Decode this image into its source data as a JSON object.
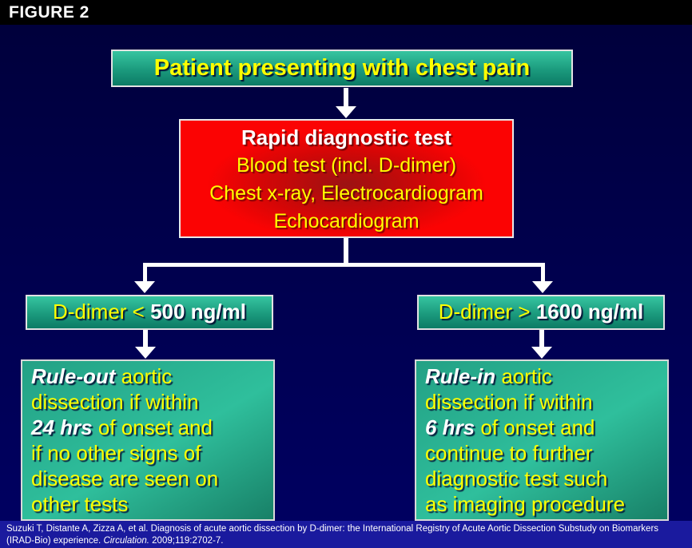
{
  "header": {
    "figure_label": "FIGURE 2"
  },
  "flow": {
    "title_box": "Patient presenting with chest pain",
    "rapid_box": {
      "heading": "Rapid diagnostic test",
      "line1": "Blood test (incl. D-dimer)",
      "line2": "Chest x-ray, Electrocardiogram",
      "line3": "Echocardiogram"
    },
    "left": {
      "condition_prefix": "D-dimer < ",
      "condition_value": "500 ng/ml",
      "outcome_lines": [
        [
          {
            "text": "Rule-out",
            "em": true
          },
          {
            "text": " aortic",
            "em": false
          }
        ],
        [
          {
            "text": "dissection if within",
            "em": false
          }
        ],
        [
          {
            "text": "24 hrs",
            "em": true
          },
          {
            "text": " of onset and",
            "em": false
          }
        ],
        [
          {
            "text": "if no other signs of",
            "em": false
          }
        ],
        [
          {
            "text": "disease are seen on",
            "em": false
          }
        ],
        [
          {
            "text": "other tests",
            "em": false
          }
        ]
      ]
    },
    "right": {
      "condition_prefix": "D-dimer > ",
      "condition_value": "1600 ng/ml",
      "outcome_lines": [
        [
          {
            "text": "Rule-in",
            "em": true
          },
          {
            "text": " aortic",
            "em": false
          }
        ],
        [
          {
            "text": "dissection if within",
            "em": false
          }
        ],
        [
          {
            "text": "6 hrs",
            "em": true
          },
          {
            "text": " of onset and",
            "em": false
          }
        ],
        [
          {
            "text": "continue to further",
            "em": false
          }
        ],
        [
          {
            "text": "diagnostic test such",
            "em": false
          }
        ],
        [
          {
            "text": "as imaging procedure",
            "em": false
          }
        ]
      ]
    }
  },
  "citation": {
    "before_journal": "Suzuki T, Distante A, Zizza A, et al. Diagnosis of acute aortic dissection by D-dimer: the International Registry of Acute Aortic Dissection Substudy on Biomarkers (IRAD-Bio) experience. ",
    "journal": "Circulation.",
    "after_journal": " 2009;119:2702-7."
  },
  "colors": {
    "header_bar": "#000000",
    "background_top": "#00003a",
    "background_bottom": "#000063",
    "teal_light": "#36c5a0",
    "teal_dark": "#0c7b65",
    "red_box": "#fb0303",
    "red_box_center": "#9c1212",
    "accent_yellow": "#ffff00",
    "citation_strip": "#1a1a9e",
    "arrow": "#ffffff"
  }
}
